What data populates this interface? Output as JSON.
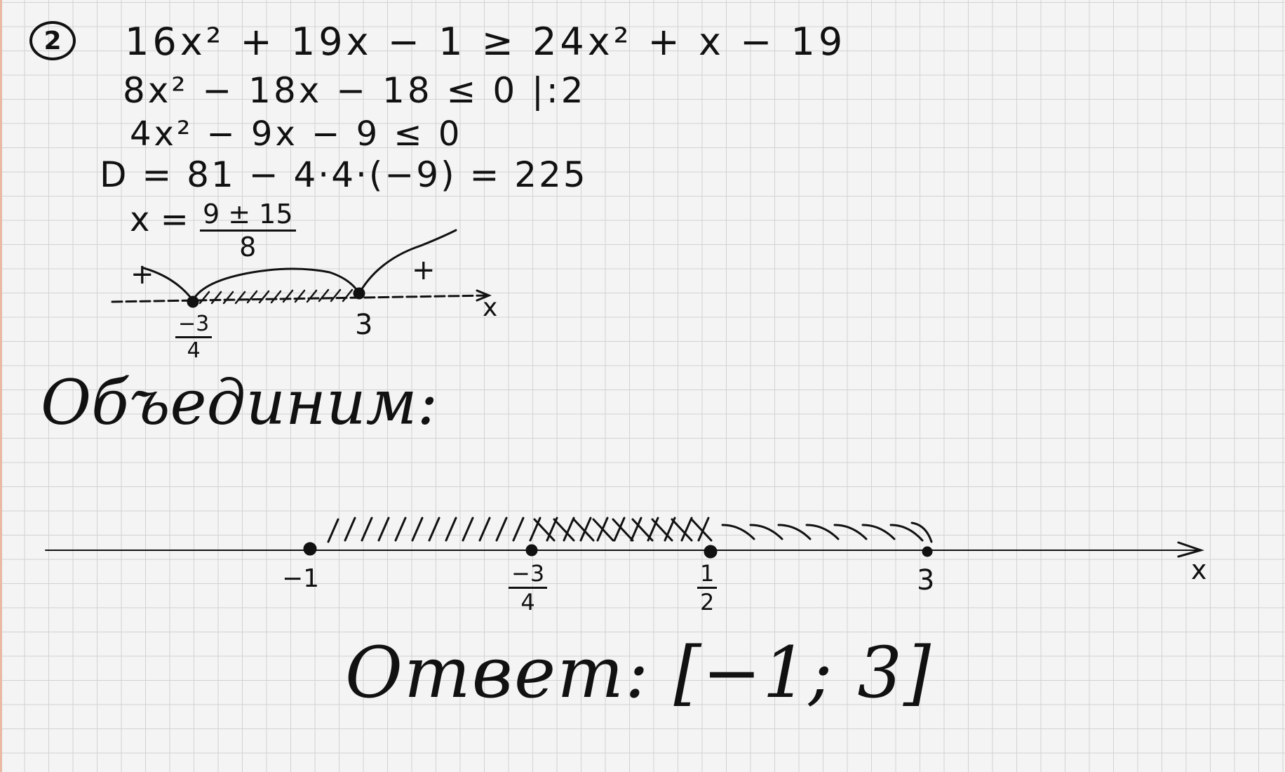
{
  "problem": {
    "number": "2",
    "line1": "16x² + 19x − 1 ≥ 24x² + x − 19",
    "line2": "8x² − 18x − 18 ≤ 0   |:2",
    "line3": "4x² − 9x − 9 ≤ 0",
    "line4": "D = 81 − 4·4·(−9) = 225",
    "roots_prefix": "x =",
    "roots_num": "9 ± 15",
    "roots_den": "8"
  },
  "sketch": {
    "plus_left": "+",
    "plus_right": "+",
    "axis_label": "x",
    "root1_num": "−3",
    "root1_den": "4",
    "root2": "3"
  },
  "combine_heading": "Объединим:",
  "number_line": {
    "axis_label": "x",
    "points": [
      {
        "label": "−1"
      },
      {
        "num": "−3",
        "den": "4"
      },
      {
        "num": "1",
        "den": "2"
      },
      {
        "label": "3"
      }
    ]
  },
  "answer": "Ответ: [−1; 3]"
}
